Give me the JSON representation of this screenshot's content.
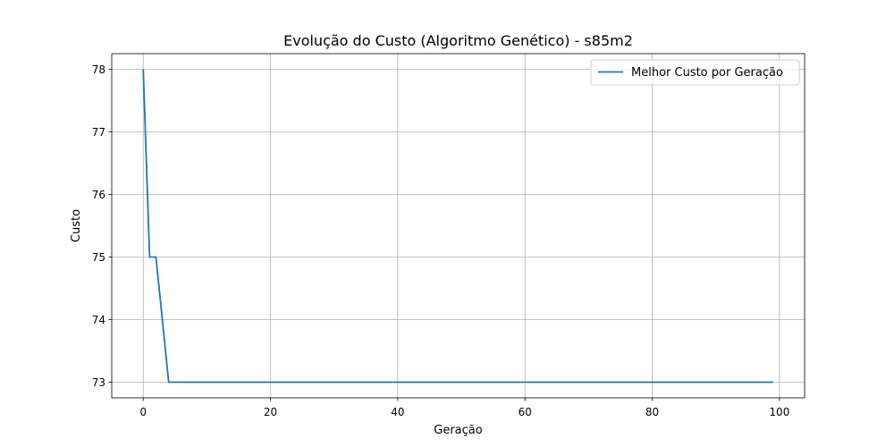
{
  "chart_data": {
    "type": "line",
    "title": "Evolução do Custo (Algoritmo Genético) - s85m2",
    "xlabel": "Geração",
    "ylabel": "Custo",
    "xlim": [
      -4.95,
      103.95
    ],
    "ylim": [
      72.75,
      78.25
    ],
    "xticks": [
      0,
      20,
      40,
      60,
      80,
      100
    ],
    "yticks": [
      73,
      74,
      75,
      76,
      77,
      78
    ],
    "grid": true,
    "legend_position": "top-right",
    "series": [
      {
        "name": "Melhor Custo por Geração",
        "color": "#1f77b4",
        "x": [
          0,
          1,
          2,
          3,
          4,
          5,
          6,
          7,
          8,
          9,
          10,
          11,
          12,
          13,
          14,
          15,
          16,
          17,
          18,
          19,
          20,
          21,
          22,
          23,
          24,
          25,
          26,
          27,
          28,
          29,
          30,
          31,
          32,
          33,
          34,
          35,
          36,
          37,
          38,
          39,
          40,
          41,
          42,
          43,
          44,
          45,
          46,
          47,
          48,
          49,
          50,
          51,
          52,
          53,
          54,
          55,
          56,
          57,
          58,
          59,
          60,
          61,
          62,
          63,
          64,
          65,
          66,
          67,
          68,
          69,
          70,
          71,
          72,
          73,
          74,
          75,
          76,
          77,
          78,
          79,
          80,
          81,
          82,
          83,
          84,
          85,
          86,
          87,
          88,
          89,
          90,
          91,
          92,
          93,
          94,
          95,
          96,
          97,
          98,
          99
        ],
        "y": [
          78,
          75,
          75,
          74,
          73,
          73,
          73,
          73,
          73,
          73,
          73,
          73,
          73,
          73,
          73,
          73,
          73,
          73,
          73,
          73,
          73,
          73,
          73,
          73,
          73,
          73,
          73,
          73,
          73,
          73,
          73,
          73,
          73,
          73,
          73,
          73,
          73,
          73,
          73,
          73,
          73,
          73,
          73,
          73,
          73,
          73,
          73,
          73,
          73,
          73,
          73,
          73,
          73,
          73,
          73,
          73,
          73,
          73,
          73,
          73,
          73,
          73,
          73,
          73,
          73,
          73,
          73,
          73,
          73,
          73,
          73,
          73,
          73,
          73,
          73,
          73,
          73,
          73,
          73,
          73,
          73,
          73,
          73,
          73,
          73,
          73,
          73,
          73,
          73,
          73,
          73,
          73,
          73,
          73,
          73,
          73,
          73,
          73,
          73,
          73
        ]
      }
    ]
  }
}
